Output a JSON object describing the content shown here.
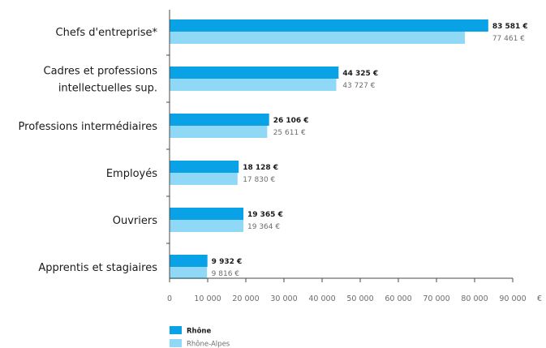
{
  "chart_data": {
    "type": "bar",
    "orientation": "horizontal",
    "categories": [
      [
        "Chefs d'entreprise*"
      ],
      [
        "Cadres et professions",
        "intellectuelles sup."
      ],
      [
        "Professions intermédiaires"
      ],
      [
        "Employés"
      ],
      [
        "Ouvriers"
      ],
      [
        "Apprentis et stagiaires"
      ]
    ],
    "series": [
      {
        "name": "Rhône",
        "color": "#0aa2e6",
        "values": [
          83581,
          44325,
          26106,
          18128,
          19365,
          9932
        ],
        "labels": [
          "83 581 €",
          "44 325 €",
          "26 106 €",
          "18 128 €",
          "19 365 €",
          "9 932 €"
        ]
      },
      {
        "name": "Rhône-Alpes",
        "color": "#8fd8f6",
        "values": [
          77461,
          43727,
          25611,
          17830,
          19364,
          9816
        ],
        "labels": [
          "77 461 €",
          "43 727 €",
          "25 611 €",
          "17 830 €",
          "19 364 €",
          "9 816 €"
        ]
      }
    ],
    "x_ticks": [
      0,
      10000,
      20000,
      30000,
      40000,
      50000,
      60000,
      70000,
      80000,
      90000
    ],
    "x_tick_labels": [
      "0",
      "10 000",
      "20 000",
      "30 000",
      "40 000",
      "50 000",
      "60 000",
      "70 000",
      "80 000",
      "90 000"
    ],
    "x_unit": "€",
    "xlim": [
      0,
      90000
    ],
    "grid": false,
    "legend_position": "bottom-left",
    "axis_color": "#4a4a4a"
  }
}
